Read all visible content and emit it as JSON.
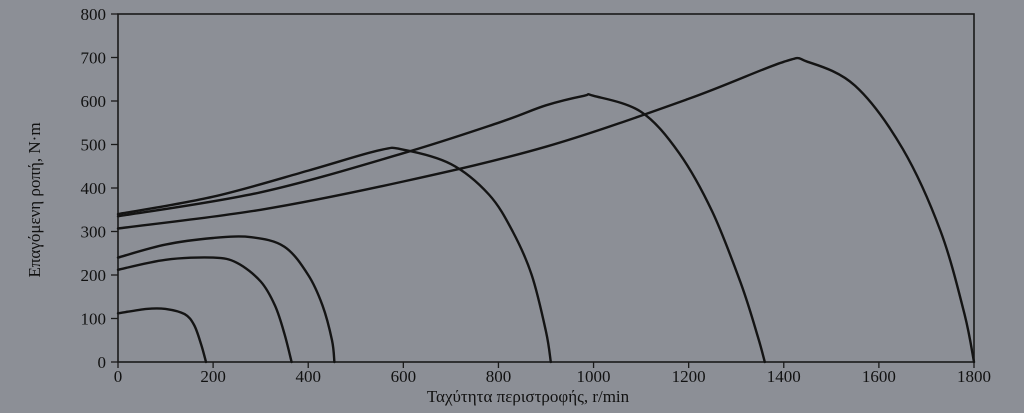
{
  "chart_data": {
    "type": "line",
    "xlabel": "Ταχύτητα περιστροφής, r/min",
    "ylabel": "Επαγόμενη ροπή, N·m",
    "xlim": [
      0,
      1800
    ],
    "ylim": [
      0,
      800
    ],
    "xticks": [
      0,
      200,
      400,
      600,
      800,
      1000,
      1200,
      1400,
      1600,
      1800
    ],
    "yticks": [
      0,
      100,
      200,
      300,
      400,
      500,
      600,
      700,
      800
    ],
    "grid": false,
    "series": [
      {
        "x": [
          0,
          60,
          100,
          140,
          160,
          175,
          185
        ],
        "y": [
          112,
          122,
          122,
          110,
          85,
          40,
          0
        ]
      },
      {
        "x": [
          0,
          100,
          200,
          250,
          300,
          330,
          350,
          365
        ],
        "y": [
          212,
          235,
          240,
          228,
          185,
          130,
          65,
          0
        ]
      },
      {
        "x": [
          0,
          100,
          200,
          280,
          350,
          400,
          430,
          450,
          455
        ],
        "y": [
          240,
          270,
          285,
          287,
          265,
          200,
          130,
          50,
          0
        ]
      },
      {
        "x": [
          0,
          200,
          400,
          550,
          600,
          700,
          780,
          830,
          870,
          900,
          910
        ],
        "y": [
          340,
          380,
          440,
          487,
          488,
          455,
          385,
          300,
          200,
          70,
          0
        ]
      },
      {
        "x": [
          0,
          300,
          600,
          800,
          900,
          980,
          1000,
          1100,
          1180,
          1250,
          1310,
          1345,
          1360
        ],
        "y": [
          335,
          390,
          480,
          550,
          590,
          612,
          612,
          575,
          480,
          345,
          180,
          60,
          0
        ]
      },
      {
        "x": [
          0,
          300,
          600,
          900,
          1200,
          1400,
          1450,
          1550,
          1650,
          1730,
          1780,
          1800
        ],
        "y": [
          307,
          350,
          415,
          495,
          605,
          690,
          690,
          635,
          490,
          300,
          110,
          0
        ]
      }
    ]
  }
}
